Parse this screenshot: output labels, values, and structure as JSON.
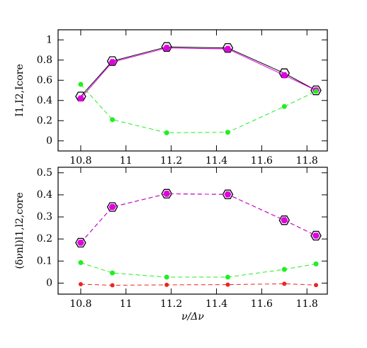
{
  "chart_data": [
    {
      "type": "line",
      "ylabel": "I1,I2,Icore",
      "x": [
        10.8,
        10.94,
        11.18,
        11.45,
        11.7,
        11.84
      ],
      "xlim": [
        10.7,
        11.89
      ],
      "xticks": [
        10.8,
        11,
        11.2,
        11.4,
        11.6,
        11.8
      ],
      "ylim": [
        -0.1,
        1.1
      ],
      "yticks": [
        0,
        0.2,
        0.4,
        0.6,
        0.8,
        1
      ],
      "series": [
        {
          "color": "#000000",
          "marker": "hexagon-open",
          "dashed": false,
          "values": [
            0.44,
            0.79,
            0.93,
            0.92,
            0.67,
            0.5
          ]
        },
        {
          "color": "#e000e0",
          "marker": "hexagon",
          "dashed": false,
          "values": [
            0.42,
            0.78,
            0.92,
            0.91,
            0.65,
            0.5
          ]
        },
        {
          "color": "#22ee22",
          "marker": "circle",
          "dashed": true,
          "values": [
            0.56,
            0.21,
            0.08,
            0.085,
            0.34,
            0.49
          ]
        }
      ]
    },
    {
      "type": "line",
      "ylabel": "(δνnl)l1,l2,core",
      "xlabel": "ν/Δν",
      "x": [
        10.8,
        10.94,
        11.18,
        11.45,
        11.7,
        11.84
      ],
      "xlim": [
        10.7,
        11.89
      ],
      "xticks": [
        10.8,
        11,
        11.2,
        11.4,
        11.6,
        11.8
      ],
      "ylim": [
        -0.05,
        0.525
      ],
      "yticks": [
        0,
        0.1,
        0.2,
        0.3,
        0.4,
        0.5
      ],
      "series": [
        {
          "color": "#000000",
          "marker": "hexagon-open",
          "dashed": true,
          "values": [
            0.183,
            0.345,
            0.405,
            0.402,
            0.285,
            0.215
          ]
        },
        {
          "color": "#e000e0",
          "marker": "hexagon",
          "dashed": true,
          "values": [
            0.183,
            0.345,
            0.405,
            0.402,
            0.285,
            0.215
          ]
        },
        {
          "color": "#22ee22",
          "marker": "circle",
          "dashed": true,
          "values": [
            0.093,
            0.046,
            0.027,
            0.027,
            0.062,
            0.087
          ]
        },
        {
          "color": "#ee2222",
          "marker": "circle-small",
          "dashed": true,
          "values": [
            -0.005,
            -0.01,
            -0.008,
            -0.007,
            -0.003,
            -0.009
          ]
        }
      ]
    }
  ]
}
